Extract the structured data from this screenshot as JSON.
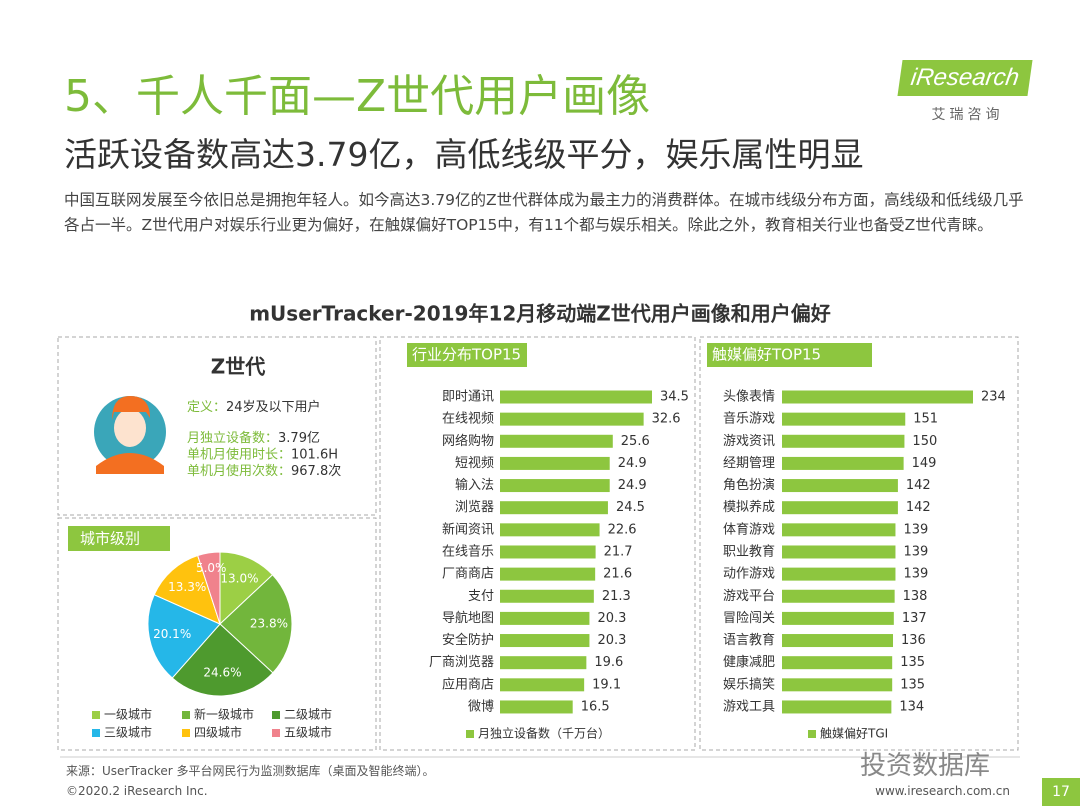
{
  "header": {
    "title": "5、千人千面—Z世代用户画像",
    "subtitle": "活跃设备数高达3.79亿，高低线级平分，娱乐属性明显",
    "paragraph": "中国互联网发展至今依旧总是拥抱年轻人。如今高达3.79亿的Z世代群体成为最主力的消费群体。在城市线级分布方面，高线级和低线级几乎各占一半。Z世代用户对娱乐行业更为偏好，在触媒偏好TOP15中，有11个都与娱乐相关。除此之外，教育相关行业也备受Z世代青睐。",
    "logo": "iResearch",
    "logo_sub": "艾瑞咨询"
  },
  "main_title": "mUserTracker-2019年12月移动端Z世代用户画像和用户偏好",
  "profile": {
    "title": "Z世代",
    "definition_label": "定义：",
    "definition": "24岁及以下用户",
    "stats": [
      {
        "label": "月独立设备数：",
        "value": "3.79亿"
      },
      {
        "label": "单机月使用时长：",
        "value": "101.6H"
      },
      {
        "label": "单机月使用次数：",
        "value": "967.8次"
      }
    ]
  },
  "chart_data": [
    {
      "type": "pie",
      "title": "城市级别",
      "categories": [
        "一级城市",
        "新一级城市",
        "二级城市",
        "三级城市",
        "四级城市",
        "五级城市"
      ],
      "values": [
        13.0,
        23.8,
        24.6,
        20.1,
        13.3,
        5.0
      ],
      "value_labels": [
        "13.0%",
        "23.8%",
        "24.6%",
        "20.1%",
        "13.3%",
        "5.0%"
      ],
      "colors": [
        "#9ccf45",
        "#72b63c",
        "#4e9a2e",
        "#25b7e8",
        "#ffc20e",
        "#f0828c"
      ]
    },
    {
      "type": "bar",
      "orientation": "horizontal",
      "title": "行业分布TOP15",
      "categories": [
        "即时通讯",
        "在线视频",
        "网络购物",
        "短视频",
        "输入法",
        "浏览器",
        "新闻资讯",
        "在线音乐",
        "厂商商店",
        "支付",
        "导航地图",
        "安全防护",
        "厂商浏览器",
        "应用商店",
        "微博"
      ],
      "series": [
        {
          "name": "月独立设备数（千万台）",
          "color": "#8dc63f",
          "values": [
            34.5,
            32.6,
            25.6,
            24.9,
            24.9,
            24.5,
            22.6,
            21.7,
            21.6,
            21.3,
            20.3,
            20.3,
            19.6,
            19.1,
            16.5
          ]
        }
      ]
    },
    {
      "type": "bar",
      "orientation": "horizontal",
      "title": "触媒偏好TOP15",
      "categories": [
        "头像表情",
        "音乐游戏",
        "游戏资讯",
        "经期管理",
        "角色扮演",
        "模拟养成",
        "体育游戏",
        "职业教育",
        "动作游戏",
        "游戏平台",
        "冒险闯关",
        "语言教育",
        "健康减肥",
        "娱乐搞笑",
        "游戏工具"
      ],
      "series": [
        {
          "name": "触媒偏好TGI",
          "color": "#8dc63f",
          "values": [
            234,
            151,
            150,
            149,
            142,
            142,
            139,
            139,
            139,
            138,
            137,
            136,
            135,
            135,
            134
          ]
        }
      ]
    }
  ],
  "footer": {
    "source": "来源：UserTracker 多平台网民行为监测数据库（桌面及智能终端）。",
    "copyright": "©2020.2 iResearch Inc.",
    "url": "www.iresearch.com.cn",
    "page": "17",
    "watermark": "投资数据库"
  }
}
